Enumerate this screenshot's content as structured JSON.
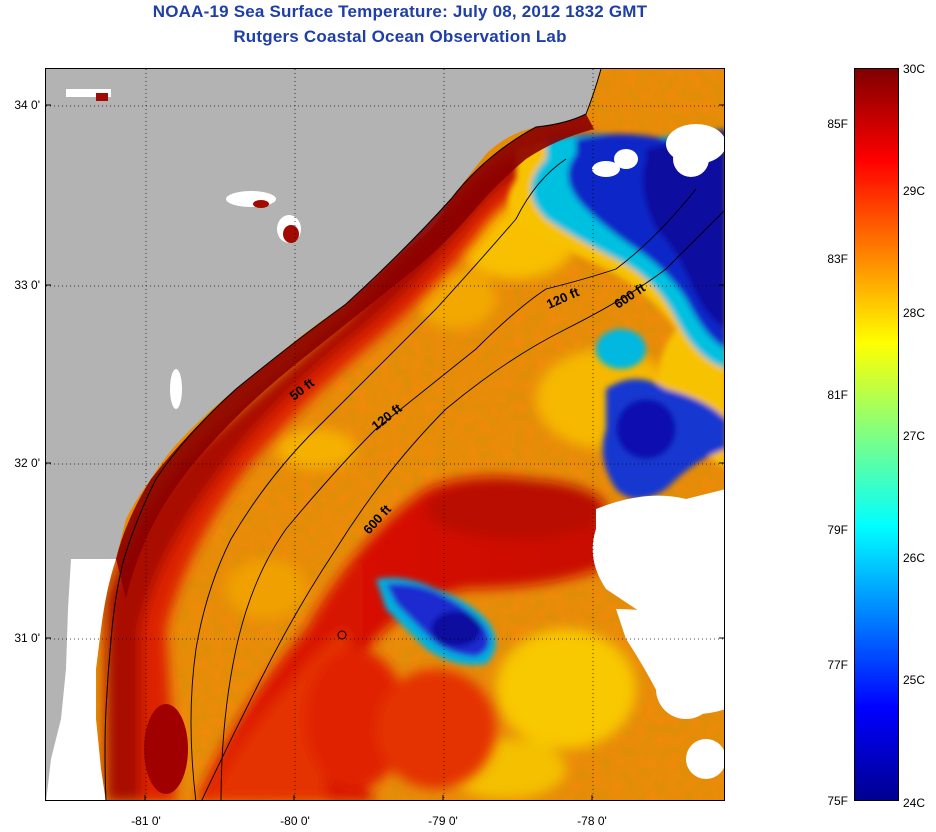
{
  "title": {
    "line1": "NOAA-19 Sea Surface Temperature:  July 08, 2012 1832 GMT",
    "line2": "Rutgers Coastal Ocean Observation Lab"
  },
  "map": {
    "lat_labels": [
      "34 0'",
      "33 0'",
      "32 0'",
      "31 0'"
    ],
    "lon_labels": [
      "-81 0'",
      "-80 0'",
      "-79 0'",
      "-78 0'"
    ],
    "contour_labels": [
      "50 ft",
      "120 ft",
      "120 ft",
      "600 ft",
      "600 ft"
    ],
    "colors": {
      "land": "#b3b3b3",
      "cloud": "#ffffff",
      "warm_dark": "#8b0000",
      "warm": "#dd2200",
      "orange": "#f07800",
      "cold": "#1010b0"
    }
  },
  "colorbar": {
    "fahrenheit_labels": [
      "85F",
      "83F",
      "81F",
      "79F",
      "77F",
      "75F"
    ],
    "celsius_labels": [
      "30C",
      "29C",
      "28C",
      "27C",
      "26C",
      "25C",
      "24C"
    ],
    "range_c": [
      24,
      30
    ],
    "colors": [
      "#00008f",
      "#0000ff",
      "#0080ff",
      "#00ffff",
      "#80ff80",
      "#ffff00",
      "#ff8000",
      "#ff0000",
      "#800000"
    ]
  }
}
